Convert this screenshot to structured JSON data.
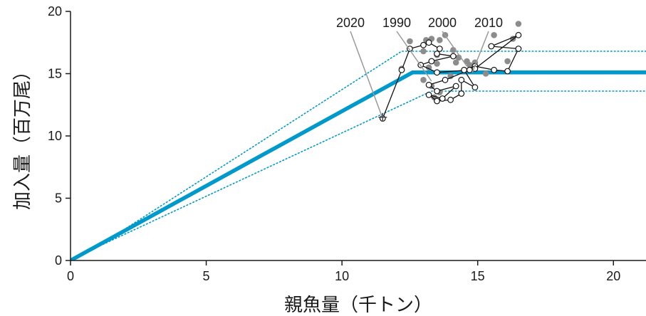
{
  "chart_data": {
    "type": "scatter",
    "xlabel": "親魚量（千トン）",
    "ylabel": "加入量（百万尾）",
    "xlim": [
      0,
      21.2
    ],
    "ylim": [
      0,
      20
    ],
    "xticks": [
      0,
      5,
      10,
      15,
      20
    ],
    "yticks": [
      0,
      5,
      10,
      15,
      20
    ],
    "grid": false,
    "colors": {
      "model": "#0099cc",
      "observed_line": "#111111",
      "grey_points": "#8c8c8c",
      "pointer_line": "#999999",
      "axis": "#1a1a1a"
    },
    "model_line": {
      "style": "solid",
      "points": [
        [
          0,
          0
        ],
        [
          12.6,
          15.1
        ],
        [
          21.2,
          15.1
        ]
      ]
    },
    "interval_upper": {
      "style": "dotted",
      "points": [
        [
          1.2,
          1.4
        ],
        [
          12.2,
          16.8
        ],
        [
          21.2,
          16.8
        ]
      ]
    },
    "interval_lower": {
      "style": "dotted",
      "points": [
        [
          1.2,
          1.3
        ],
        [
          13.3,
          13.6
        ],
        [
          21.2,
          13.6
        ]
      ]
    },
    "observed_series": [
      [
        11.5,
        11.4
      ],
      [
        12.2,
        15.3
      ],
      [
        12.5,
        17.0
      ],
      [
        13.0,
        17.3
      ],
      [
        13.2,
        17.5
      ],
      [
        13.6,
        17.0
      ],
      [
        13.5,
        16.6
      ],
      [
        14.1,
        16.4
      ],
      [
        13.3,
        16.0
      ],
      [
        12.9,
        15.7
      ],
      [
        13.5,
        15.1
      ],
      [
        14.7,
        15.3
      ],
      [
        13.8,
        14.5
      ],
      [
        13.2,
        14.1
      ],
      [
        13.5,
        13.6
      ],
      [
        14.2,
        14.0
      ],
      [
        13.7,
        13.0
      ],
      [
        13.2,
        13.3
      ],
      [
        13.5,
        12.8
      ],
      [
        14.0,
        12.9
      ],
      [
        14.4,
        13.4
      ],
      [
        14.4,
        14.5
      ],
      [
        14.9,
        13.9
      ],
      [
        14.5,
        15.3
      ],
      [
        14.9,
        15.6
      ],
      [
        15.6,
        15.3
      ],
      [
        16.1,
        15.2
      ],
      [
        16.5,
        17.0
      ],
      [
        15.5,
        17.2
      ],
      [
        16.5,
        18.1
      ],
      [
        14.9,
        15.4
      ]
    ],
    "prediction_point": [
      11.5,
      11.5
    ],
    "grey_points": [
      [
        12.2,
        15.4
      ],
      [
        12.5,
        17.6
      ],
      [
        13.1,
        17.7
      ],
      [
        13.3,
        17.8
      ],
      [
        13.6,
        17.7
      ],
      [
        13.0,
        16.8
      ],
      [
        13.5,
        16.5
      ],
      [
        13.8,
        18.1
      ],
      [
        14.1,
        16.9
      ],
      [
        13.2,
        15.5
      ],
      [
        13.5,
        15.8
      ],
      [
        14.2,
        15.9
      ],
      [
        13.0,
        14.5
      ],
      [
        13.3,
        14.0
      ],
      [
        13.6,
        13.5
      ],
      [
        14.0,
        14.8
      ],
      [
        14.3,
        16.3
      ],
      [
        14.6,
        16.0
      ],
      [
        14.9,
        15.9
      ],
      [
        15.3,
        15.0
      ],
      [
        15.6,
        18.1
      ],
      [
        16.1,
        16.0
      ],
      [
        16.5,
        19.0
      ],
      [
        16.3,
        17.8
      ],
      [
        13.4,
        13.1
      ],
      [
        14.7,
        15.7
      ]
    ],
    "year_annotations": [
      {
        "label": "2020",
        "target": [
          11.5,
          11.4
        ]
      },
      {
        "label": "1990",
        "target": [
          13.3,
          14.4
        ]
      },
      {
        "label": "2000",
        "target": [
          14.6,
          15.6
        ]
      },
      {
        "label": "2010",
        "target": [
          14.8,
          15.1
        ]
      }
    ]
  }
}
